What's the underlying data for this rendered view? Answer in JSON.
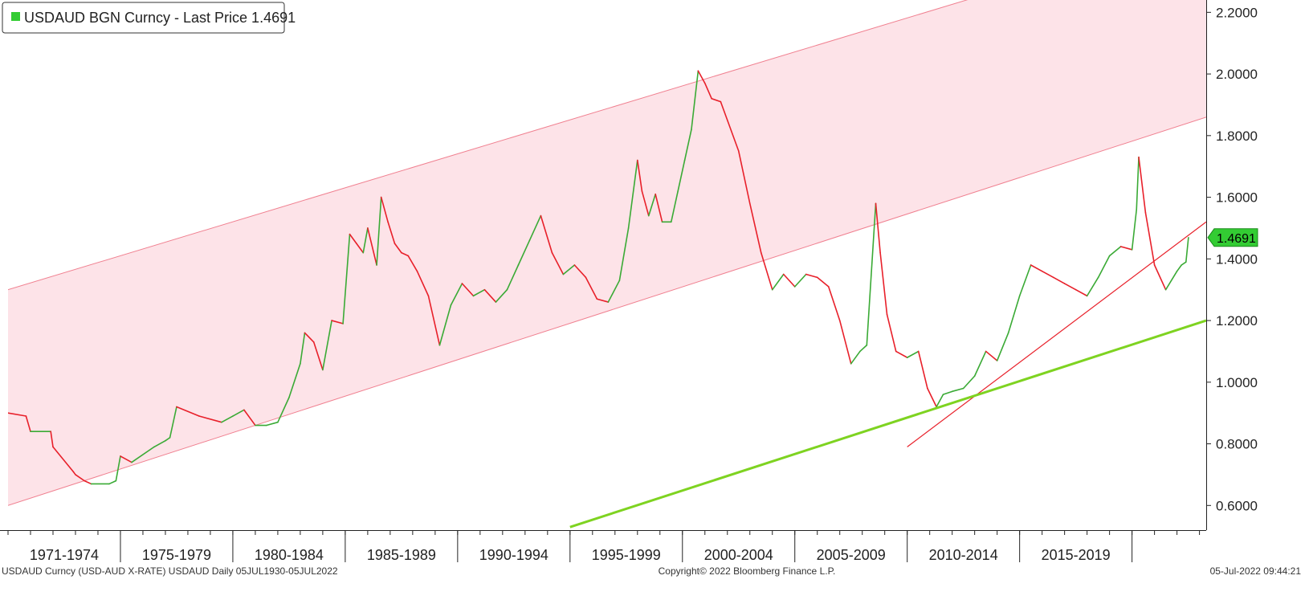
{
  "chart_data": {
    "type": "line",
    "legend": {
      "label": "USDAUD BGN Curncy - Last Price 1.4691",
      "placement": "top-left",
      "swatch_color": "#33cc33"
    },
    "last_price_label": "1.4691",
    "last_price": 1.4691,
    "ylim": [
      0.52,
      2.24
    ],
    "y_ticks": [
      {
        "value": 2.2,
        "label": "2.2000"
      },
      {
        "value": 2.0,
        "label": "2.0000"
      },
      {
        "value": 1.8,
        "label": "1.8000"
      },
      {
        "value": 1.6,
        "label": "1.6000"
      },
      {
        "value": 1.4,
        "label": "1.4000"
      },
      {
        "value": 1.2,
        "label": "1.2000"
      },
      {
        "value": 1.0,
        "label": "1.0000"
      },
      {
        "value": 0.8,
        "label": "0.8000"
      },
      {
        "value": 0.6,
        "label": "0.6000"
      }
    ],
    "xlim": [
      1970.0,
      2023.3
    ],
    "x_periods": [
      {
        "label": "1971-1974",
        "start": 1970.0,
        "end": 1975.0
      },
      {
        "label": "1975-1979",
        "start": 1975.0,
        "end": 1980.0
      },
      {
        "label": "1980-1984",
        "start": 1980.0,
        "end": 1985.0
      },
      {
        "label": "1985-1989",
        "start": 1985.0,
        "end": 1990.0
      },
      {
        "label": "1990-1994",
        "start": 1990.0,
        "end": 1995.0
      },
      {
        "label": "1995-1999",
        "start": 1995.0,
        "end": 2000.0
      },
      {
        "label": "2000-2004",
        "start": 2000.0,
        "end": 2005.0
      },
      {
        "label": "2005-2009",
        "start": 2005.0,
        "end": 2010.0
      },
      {
        "label": "2010-2014",
        "start": 2010.0,
        "end": 2015.0
      },
      {
        "label": "2015-2019",
        "start": 2015.0,
        "end": 2020.0
      },
      {
        "label": "",
        "start": 2020.0,
        "end": 2023.3
      }
    ],
    "series": [
      {
        "x": [
          1970.0,
          1970.8,
          1971.0,
          1971.9,
          1972.0,
          1972.9,
          1973.0,
          1973.4,
          1973.7,
          1974.5,
          1974.8,
          1975.0,
          1975.5,
          1976.5,
          1977.0,
          1977.2,
          1977.5,
          1978.5,
          1979.5,
          1980.0,
          1980.5,
          1981.0,
          1981.5,
          1982.0,
          1982.5,
          1983.0,
          1983.2,
          1983.6,
          1984.0,
          1984.4,
          1984.9,
          1985.2,
          1985.5,
          1985.8,
          1986.0,
          1986.4,
          1986.6,
          1986.9,
          1987.2,
          1987.5,
          1987.8,
          1988.2,
          1988.7,
          1989.2,
          1989.7,
          1990.2,
          1990.7,
          1991.2,
          1991.7,
          1992.2,
          1992.7,
          1993.2,
          1993.7,
          1994.2,
          1994.7,
          1995.2,
          1995.7,
          1996.2,
          1996.7,
          1997.2,
          1997.6,
          1998.0,
          1998.2,
          1998.5,
          1998.8,
          1999.1,
          1999.5,
          1999.8,
          2000.1,
          2000.4,
          2000.7,
          2001.0,
          2001.3,
          2001.7,
          2002.0,
          2002.5,
          2003.0,
          2003.5,
          2004.0,
          2004.5,
          2005.0,
          2005.5,
          2006.0,
          2006.5,
          2007.0,
          2007.5,
          2007.9,
          2008.2,
          2008.6,
          2008.8,
          2009.1,
          2009.5,
          2010.0,
          2010.5,
          2010.9,
          2011.3,
          2011.6,
          2012.0,
          2012.5,
          2013.0,
          2013.5,
          2014.0,
          2014.5,
          2015.0,
          2015.5,
          2016.0,
          2016.5,
          2017.0,
          2017.5,
          2018.0,
          2018.5,
          2019.0,
          2019.5,
          2020.0,
          2020.2,
          2020.3,
          2020.6,
          2021.0,
          2021.5,
          2022.0,
          2022.2,
          2022.4,
          2022.51
        ],
        "y": [
          0.9,
          0.89,
          0.84,
          0.84,
          0.79,
          0.71,
          0.7,
          0.68,
          0.67,
          0.67,
          0.68,
          0.76,
          0.74,
          0.79,
          0.81,
          0.82,
          0.92,
          0.89,
          0.87,
          0.89,
          0.91,
          0.86,
          0.86,
          0.87,
          0.95,
          1.06,
          1.16,
          1.13,
          1.04,
          1.2,
          1.19,
          1.48,
          1.45,
          1.42,
          1.5,
          1.38,
          1.6,
          1.52,
          1.45,
          1.42,
          1.41,
          1.36,
          1.28,
          1.12,
          1.25,
          1.32,
          1.28,
          1.3,
          1.26,
          1.3,
          1.38,
          1.46,
          1.54,
          1.42,
          1.35,
          1.38,
          1.34,
          1.27,
          1.26,
          1.33,
          1.5,
          1.72,
          1.62,
          1.54,
          1.61,
          1.52,
          1.52,
          1.62,
          1.72,
          1.82,
          2.01,
          1.97,
          1.92,
          1.91,
          1.85,
          1.75,
          1.58,
          1.42,
          1.3,
          1.35,
          1.31,
          1.35,
          1.34,
          1.31,
          1.2,
          1.06,
          1.1,
          1.12,
          1.58,
          1.42,
          1.22,
          1.1,
          1.08,
          1.1,
          0.98,
          0.92,
          0.96,
          0.97,
          0.98,
          1.02,
          1.1,
          1.07,
          1.16,
          1.28,
          1.38,
          1.36,
          1.34,
          1.32,
          1.3,
          1.28,
          1.34,
          1.41,
          1.44,
          1.43,
          1.56,
          1.73,
          1.55,
          1.38,
          1.3,
          1.36,
          1.38,
          1.39,
          1.4691
        ]
      }
    ],
    "channel": {
      "upper": {
        "x1": 1970.0,
        "y1": 1.3,
        "x2": 2023.3,
        "y2": 2.475
      },
      "lower": {
        "x1": 1970.0,
        "y1": 0.6,
        "x2": 2023.3,
        "y2": 1.86
      },
      "fill_color": "#fde3e8",
      "line_color": "#f08090"
    },
    "trendlines": [
      {
        "x1": 2010.0,
        "y1": 0.79,
        "x2": 2023.3,
        "y2": 1.52,
        "color": "#e8202a"
      },
      {
        "x1": 1995.0,
        "y1": 0.53,
        "x2": 2023.3,
        "y2": 1.2,
        "color": "#7ed321"
      }
    ],
    "colors": {
      "up": "#3aaa35",
      "down": "#e8202a",
      "last_price_box": "#33cc33"
    },
    "grid": false
  },
  "footer": {
    "left": "USDAUD Curncy (USD-AUD X-RATE) USDAUD  Daily 05JUL1930-05JUL2022",
    "center": "Copyright© 2022 Bloomberg Finance L.P.",
    "right": "05-Jul-2022 09:44:21"
  }
}
